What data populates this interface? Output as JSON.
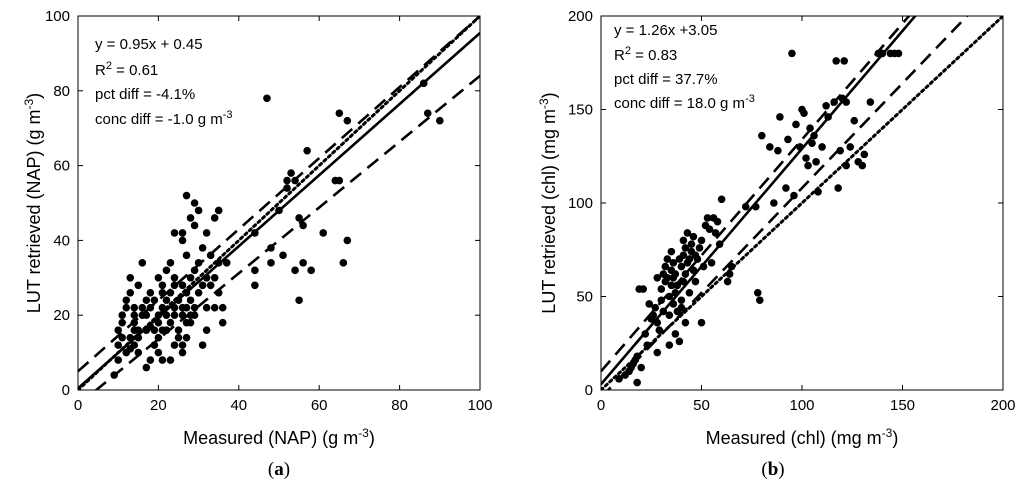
{
  "chart_data": [
    {
      "type": "scatter",
      "panel_label": "(a)",
      "xlabel": "Measured (NAP)  (g m",
      "xlabel_sup": "-3",
      "xlabel_end": ")",
      "ylabel": "LUT retrieved (NAP)  (g m",
      "ylabel_sup": "-3",
      "ylabel_end": ")",
      "xlim": [
        0,
        100
      ],
      "ylim": [
        0,
        100
      ],
      "xticks": [
        0,
        20,
        40,
        60,
        80,
        100
      ],
      "yticks": [
        0,
        20,
        40,
        60,
        80,
        100
      ],
      "grid": false,
      "annotations": {
        "eq": "y = 0.95x + 0.45",
        "r2_prefix": "R",
        "r2_sup": "2",
        "r2_value": " = 0.61",
        "pct": "pct diff = -4.1%",
        "conc": "conc diff = -1.0 g m",
        "conc_sup": "-3"
      },
      "lines": {
        "fit": {
          "slope": 0.95,
          "intercept": 0.45,
          "style": "solid"
        },
        "one_to_one": {
          "slope": 1,
          "intercept": 0,
          "style": "dotted"
        },
        "upper_bound": {
          "slope": 0.95,
          "intercept": 5,
          "style": "dashed"
        },
        "lower_bound": {
          "slope": 0.88,
          "intercept": -4,
          "style": "dashed"
        }
      },
      "points": [
        [
          9,
          4
        ],
        [
          10,
          8
        ],
        [
          10,
          12
        ],
        [
          10,
          16
        ],
        [
          11,
          14
        ],
        [
          11,
          18
        ],
        [
          11,
          20
        ],
        [
          12,
          22
        ],
        [
          12,
          10
        ],
        [
          12,
          24
        ],
        [
          13,
          14
        ],
        [
          13,
          26
        ],
        [
          13,
          30
        ],
        [
          13,
          11
        ],
        [
          14,
          12
        ],
        [
          14,
          16
        ],
        [
          14,
          20
        ],
        [
          14,
          22
        ],
        [
          14,
          18
        ],
        [
          15,
          10
        ],
        [
          15,
          16
        ],
        [
          15,
          28
        ],
        [
          15,
          14
        ],
        [
          16,
          20
        ],
        [
          16,
          22
        ],
        [
          16,
          34
        ],
        [
          17,
          6
        ],
        [
          17,
          16
        ],
        [
          17,
          24
        ],
        [
          17,
          20
        ],
        [
          18,
          8
        ],
        [
          18,
          22
        ],
        [
          18,
          17
        ],
        [
          18,
          26
        ],
        [
          19,
          16
        ],
        [
          19,
          24
        ],
        [
          19,
          12
        ],
        [
          20,
          10
        ],
        [
          20,
          18
        ],
        [
          20,
          20
        ],
        [
          20,
          30
        ],
        [
          20,
          14
        ],
        [
          21,
          8
        ],
        [
          21,
          16
        ],
        [
          21,
          22
        ],
        [
          21,
          28
        ],
        [
          21,
          26
        ],
        [
          22,
          20
        ],
        [
          22,
          24
        ],
        [
          22,
          32
        ],
        [
          22,
          16
        ],
        [
          23,
          18
        ],
        [
          23,
          8
        ],
        [
          23,
          26
        ],
        [
          23,
          34
        ],
        [
          24,
          12
        ],
        [
          24,
          20
        ],
        [
          24,
          22
        ],
        [
          24,
          30
        ],
        [
          24,
          28
        ],
        [
          24,
          42
        ],
        [
          25,
          14
        ],
        [
          25,
          24
        ],
        [
          25,
          16
        ],
        [
          26,
          10
        ],
        [
          26,
          12
        ],
        [
          26,
          20
        ],
        [
          26,
          22
        ],
        [
          26,
          28
        ],
        [
          26,
          40
        ],
        [
          26,
          42
        ],
        [
          27,
          14
        ],
        [
          27,
          22
        ],
        [
          27,
          26
        ],
        [
          27,
          36
        ],
        [
          27,
          52
        ],
        [
          27,
          18
        ],
        [
          28,
          18
        ],
        [
          28,
          20
        ],
        [
          28,
          24
        ],
        [
          28,
          30
        ],
        [
          28,
          46
        ],
        [
          29,
          20
        ],
        [
          29,
          22
        ],
        [
          29,
          32
        ],
        [
          29,
          50
        ],
        [
          29,
          44
        ],
        [
          30,
          26
        ],
        [
          30,
          34
        ],
        [
          30,
          48
        ],
        [
          31,
          12
        ],
        [
          31,
          28
        ],
        [
          31,
          38
        ],
        [
          32,
          16
        ],
        [
          32,
          22
        ],
        [
          32,
          30
        ],
        [
          32,
          42
        ],
        [
          33,
          28
        ],
        [
          33,
          36
        ],
        [
          34,
          22
        ],
        [
          34,
          30
        ],
        [
          34,
          46
        ],
        [
          35,
          26
        ],
        [
          35,
          34
        ],
        [
          35,
          48
        ],
        [
          36,
          18
        ],
        [
          36,
          22
        ],
        [
          37,
          34
        ],
        [
          44,
          28
        ],
        [
          44,
          32
        ],
        [
          44,
          42
        ],
        [
          48,
          34
        ],
        [
          48,
          38
        ],
        [
          50,
          48
        ],
        [
          51,
          36
        ],
        [
          52,
          56
        ],
        [
          52,
          54
        ],
        [
          53,
          58
        ],
        [
          54,
          32
        ],
        [
          54,
          56
        ],
        [
          55,
          24
        ],
        [
          55,
          46
        ],
        [
          56,
          34
        ],
        [
          56,
          44
        ],
        [
          57,
          64
        ],
        [
          58,
          32
        ],
        [
          61,
          42
        ],
        [
          64,
          56
        ],
        [
          65,
          56
        ],
        [
          65,
          74
        ],
        [
          66,
          34
        ],
        [
          67,
          40
        ],
        [
          67,
          72
        ],
        [
          47,
          78
        ],
        [
          86,
          82
        ],
        [
          87,
          74
        ],
        [
          90,
          72
        ]
      ]
    },
    {
      "type": "scatter",
      "panel_label": "(b)",
      "xlabel": "Measured (chl)  (mg m",
      "xlabel_sup": "-3",
      "xlabel_end": ")",
      "ylabel": "LUT retrieved (chl)  (mg m",
      "ylabel_sup": "-3",
      "ylabel_end": ")",
      "xlim": [
        0,
        200
      ],
      "ylim": [
        0,
        200
      ],
      "xticks": [
        0,
        50,
        100,
        150,
        200
      ],
      "yticks": [
        0,
        50,
        100,
        150,
        200
      ],
      "grid": false,
      "annotations": {
        "eq": "y = 1.26x +3.05",
        "r2_prefix": "R",
        "r2_sup": "2",
        "r2_value": " = 0.83",
        "pct": "pct diff = 37.7%",
        "conc": "conc diff = 18.0 g m",
        "conc_sup": "-3"
      },
      "lines": {
        "fit": {
          "slope": 1.26,
          "intercept": 3.05,
          "style": "solid"
        },
        "one_to_one": {
          "slope": 1,
          "intercept": 0,
          "style": "dotted"
        },
        "upper_bound": {
          "slope": 1.24,
          "intercept": 10,
          "style": "dashed"
        },
        "lower_bound": {
          "slope": 1.12,
          "intercept": -4,
          "style": "dashed"
        }
      },
      "points": [
        [
          9,
          6
        ],
        [
          12,
          8
        ],
        [
          14,
          10
        ],
        [
          15,
          12
        ],
        [
          16,
          14
        ],
        [
          17,
          16
        ],
        [
          18,
          18
        ],
        [
          18,
          4
        ],
        [
          19,
          54
        ],
        [
          20,
          12
        ],
        [
          21,
          54
        ],
        [
          22,
          30
        ],
        [
          23,
          24
        ],
        [
          24,
          46
        ],
        [
          25,
          38
        ],
        [
          26,
          40
        ],
        [
          27,
          44
        ],
        [
          28,
          20
        ],
        [
          28,
          36
        ],
        [
          28,
          60
        ],
        [
          29,
          32
        ],
        [
          30,
          48
        ],
        [
          30,
          54
        ],
        [
          31,
          42
        ],
        [
          31,
          62
        ],
        [
          32,
          58
        ],
        [
          32,
          66
        ],
        [
          33,
          60
        ],
        [
          33,
          70
        ],
        [
          34,
          24
        ],
        [
          34,
          40
        ],
        [
          34,
          50
        ],
        [
          35,
          56
        ],
        [
          35,
          64
        ],
        [
          35,
          74
        ],
        [
          36,
          46
        ],
        [
          36,
          60
        ],
        [
          36,
          68
        ],
        [
          37,
          30
        ],
        [
          37,
          52
        ],
        [
          37,
          62
        ],
        [
          38,
          42
        ],
        [
          38,
          56
        ],
        [
          39,
          26
        ],
        [
          39,
          70
        ],
        [
          40,
          44
        ],
        [
          40,
          48
        ],
        [
          40,
          66
        ],
        [
          41,
          58
        ],
        [
          41,
          72
        ],
        [
          41,
          80
        ],
        [
          42,
          36
        ],
        [
          42,
          62
        ],
        [
          42,
          76
        ],
        [
          43,
          68
        ],
        [
          43,
          84
        ],
        [
          44,
          52
        ],
        [
          44,
          70
        ],
        [
          45,
          74
        ],
        [
          45,
          78
        ],
        [
          46,
          64
        ],
        [
          46,
          82
        ],
        [
          47,
          58
        ],
        [
          47,
          72
        ],
        [
          48,
          70
        ],
        [
          49,
          76
        ],
        [
          50,
          80
        ],
        [
          50,
          36
        ],
        [
          51,
          66
        ],
        [
          52,
          88
        ],
        [
          53,
          92
        ],
        [
          54,
          86
        ],
        [
          55,
          68
        ],
        [
          56,
          92
        ],
        [
          57,
          84
        ],
        [
          58,
          90
        ],
        [
          59,
          78
        ],
        [
          60,
          102
        ],
        [
          63,
          58
        ],
        [
          64,
          62
        ],
        [
          65,
          66
        ],
        [
          72,
          98
        ],
        [
          77,
          98
        ],
        [
          78,
          52
        ],
        [
          79,
          48
        ],
        [
          80,
          136
        ],
        [
          84,
          130
        ],
        [
          86,
          100
        ],
        [
          88,
          128
        ],
        [
          89,
          146
        ],
        [
          92,
          108
        ],
        [
          93,
          134
        ],
        [
          95,
          180
        ],
        [
          96,
          104
        ],
        [
          97,
          142
        ],
        [
          99,
          130
        ],
        [
          100,
          150
        ],
        [
          101,
          148
        ],
        [
          102,
          124
        ],
        [
          103,
          120
        ],
        [
          104,
          140
        ],
        [
          105,
          132
        ],
        [
          106,
          136
        ],
        [
          107,
          122
        ],
        [
          108,
          106
        ],
        [
          110,
          130
        ],
        [
          112,
          152
        ],
        [
          113,
          146
        ],
        [
          116,
          154
        ],
        [
          117,
          176
        ],
        [
          118,
          108
        ],
        [
          119,
          128
        ],
        [
          120,
          156
        ],
        [
          121,
          176
        ],
        [
          122,
          154
        ],
        [
          122,
          120
        ],
        [
          124,
          130
        ],
        [
          126,
          144
        ],
        [
          128,
          122
        ],
        [
          130,
          120
        ],
        [
          131,
          126
        ],
        [
          134,
          154
        ],
        [
          138,
          180
        ],
        [
          140,
          180
        ],
        [
          144,
          180
        ],
        [
          146,
          180
        ],
        [
          148,
          180
        ]
      ]
    }
  ]
}
